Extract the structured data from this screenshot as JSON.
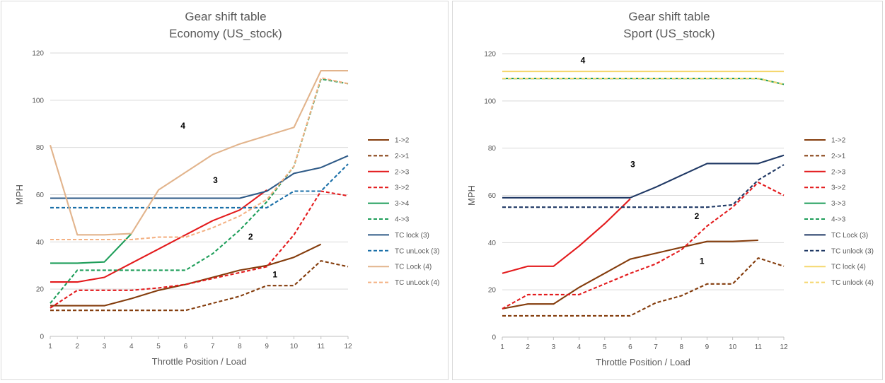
{
  "chart_data": [
    {
      "type": "line",
      "title": "Gear shift table",
      "subtitle": "Economy (US_stock)",
      "xlabel": "Throttle Position / Load",
      "ylabel": "MPH",
      "x": [
        1,
        2,
        3,
        4,
        5,
        6,
        7,
        8,
        9,
        10,
        11,
        12
      ],
      "ylim": [
        0,
        120
      ],
      "yticks": [
        0,
        20,
        40,
        60,
        80,
        100,
        120
      ],
      "grid": true,
      "legend_position": "right",
      "annotations": [
        {
          "text": "4",
          "x": 5.9,
          "y": 88
        },
        {
          "text": "3",
          "x": 7.1,
          "y": 65
        },
        {
          "text": "2",
          "x": 8.4,
          "y": 41
        },
        {
          "text": "1",
          "x": 9.3,
          "y": 25
        }
      ],
      "series": [
        {
          "name": "1->2",
          "color": "#843c0c",
          "dash": "solid",
          "values": [
            13,
            13,
            13,
            16,
            19.5,
            22,
            25,
            28,
            30,
            33.5,
            39,
            null
          ]
        },
        {
          "name": "2->1",
          "color": "#843c0c",
          "dash": "dashed",
          "values": [
            11,
            11,
            11,
            11,
            11,
            11,
            14,
            17,
            21.5,
            21.5,
            32,
            29.5
          ]
        },
        {
          "name": "2->3",
          "color": "#e31a1c",
          "dash": "solid",
          "values": [
            23,
            23,
            25,
            31,
            37,
            43,
            49,
            53.5,
            62,
            null,
            null,
            null
          ]
        },
        {
          "name": "3->2",
          "color": "#e31a1c",
          "dash": "dashed",
          "values": [
            12,
            19.5,
            19.5,
            19.5,
            20.5,
            22,
            24.5,
            27,
            29.5,
            43,
            61.5,
            59.5
          ]
        },
        {
          "name": "3->4",
          "color": "#1e9e5a",
          "dash": "solid",
          "values": [
            31,
            31,
            31.5,
            43.5,
            null,
            null,
            null,
            null,
            null,
            null,
            null,
            null
          ]
        },
        {
          "name": "4->3",
          "color": "#1e9e5a",
          "dash": "dashed",
          "values": [
            14,
            28,
            28,
            28,
            28,
            28,
            35,
            45,
            57,
            72,
            109,
            107
          ]
        },
        {
          "name": "TC lock (3)",
          "color": "#2e5a87",
          "dash": "solid",
          "values": [
            58.5,
            58.5,
            58.5,
            58.5,
            58.5,
            58.5,
            58.5,
            58.5,
            61.5,
            69,
            71.5,
            76.5
          ]
        },
        {
          "name": "TC unLock (3)",
          "color": "#1a6fa8",
          "dash": "dashed",
          "values": [
            54.5,
            54.5,
            54.5,
            54.5,
            54.5,
            54.5,
            54.5,
            54.5,
            54.5,
            61.5,
            61.5,
            73
          ]
        },
        {
          "name": "TC Lock (4)",
          "color": "#e2b48c",
          "dash": "solid",
          "values": [
            81,
            43,
            43,
            43.5,
            62,
            69.5,
            77,
            81.5,
            85,
            88.5,
            112.5,
            112.5
          ]
        },
        {
          "name": "TC unLock (4)",
          "color": "#f4b183",
          "dash": "dashed",
          "values": [
            41,
            41,
            41,
            41,
            42,
            42,
            46,
            51,
            58,
            72,
            109.5,
            107
          ]
        }
      ]
    },
    {
      "type": "line",
      "title": "Gear shift table",
      "subtitle": "Sport (US_stock)",
      "xlabel": "Throttle Position / Load",
      "ylabel": "MPH",
      "x": [
        1,
        2,
        3,
        4,
        5,
        6,
        7,
        8,
        9,
        10,
        11,
        12
      ],
      "ylim": [
        0,
        120
      ],
      "yticks": [
        0,
        20,
        40,
        60,
        80,
        100,
        120
      ],
      "grid": true,
      "legend_position": "right",
      "annotations": [
        {
          "text": "4",
          "x": 4.15,
          "y": 116
        },
        {
          "text": "3",
          "x": 6.1,
          "y": 72
        },
        {
          "text": "2",
          "x": 8.6,
          "y": 50
        },
        {
          "text": "1",
          "x": 8.8,
          "y": 31
        }
      ],
      "series": [
        {
          "name": "1->2",
          "color": "#843c0c",
          "dash": "solid",
          "values": [
            12,
            14,
            14,
            21,
            27,
            33,
            35.5,
            38,
            40.5,
            40.5,
            41,
            null
          ]
        },
        {
          "name": "2->1",
          "color": "#843c0c",
          "dash": "dashed",
          "values": [
            9,
            9,
            9,
            9,
            9,
            9,
            14.5,
            17.5,
            22.5,
            22.5,
            33.5,
            30
          ]
        },
        {
          "name": "2->3",
          "color": "#e31a1c",
          "dash": "solid",
          "values": [
            27,
            30,
            30,
            38.5,
            48,
            58.5,
            null,
            null,
            null,
            null,
            null,
            null
          ]
        },
        {
          "name": "3->2",
          "color": "#e31a1c",
          "dash": "dashed",
          "values": [
            12,
            18,
            18,
            18,
            22.5,
            27,
            31,
            37,
            47,
            55,
            65.5,
            60
          ]
        },
        {
          "name": "3->3",
          "color": "#1e9e5a",
          "dash": "solid",
          "values": [
            109.5,
            109.5,
            109.5,
            109.5,
            109.5,
            109.5,
            109.5,
            109.5,
            109.5,
            109.5,
            109.5,
            107
          ]
        },
        {
          "name": "4->3",
          "color": "#1e9e5a",
          "dash": "dashed",
          "values": [
            109.5,
            109.5,
            109.5,
            109.5,
            109.5,
            109.5,
            109.5,
            109.5,
            109.5,
            109.5,
            109.5,
            107
          ]
        },
        {
          "name": "TC Lock (3)",
          "color": "#1f3864",
          "dash": "solid",
          "values": [
            59,
            59,
            59,
            59,
            59,
            59,
            63.5,
            68.5,
            73.5,
            73.5,
            73.5,
            77
          ]
        },
        {
          "name": "TC unlock (3)",
          "color": "#1f3864",
          "dash": "dashed",
          "values": [
            55,
            55,
            55,
            55,
            55,
            55,
            55,
            55,
            55,
            56,
            66.5,
            73
          ]
        },
        {
          "name": "TC lock (4)",
          "color": "#f5d76e",
          "dash": "solid",
          "values": [
            112.5,
            112.5,
            112.5,
            112.5,
            112.5,
            112.5,
            112.5,
            112.5,
            112.5,
            112.5,
            112.5,
            112.5
          ]
        },
        {
          "name": "TC unlock (4)",
          "color": "#f5d76e",
          "dash": "dashed",
          "values": [
            109.5,
            109.5,
            109.5,
            109.5,
            109.5,
            109.5,
            109.5,
            109.5,
            109.5,
            109.5,
            109.5,
            107
          ]
        }
      ]
    }
  ]
}
